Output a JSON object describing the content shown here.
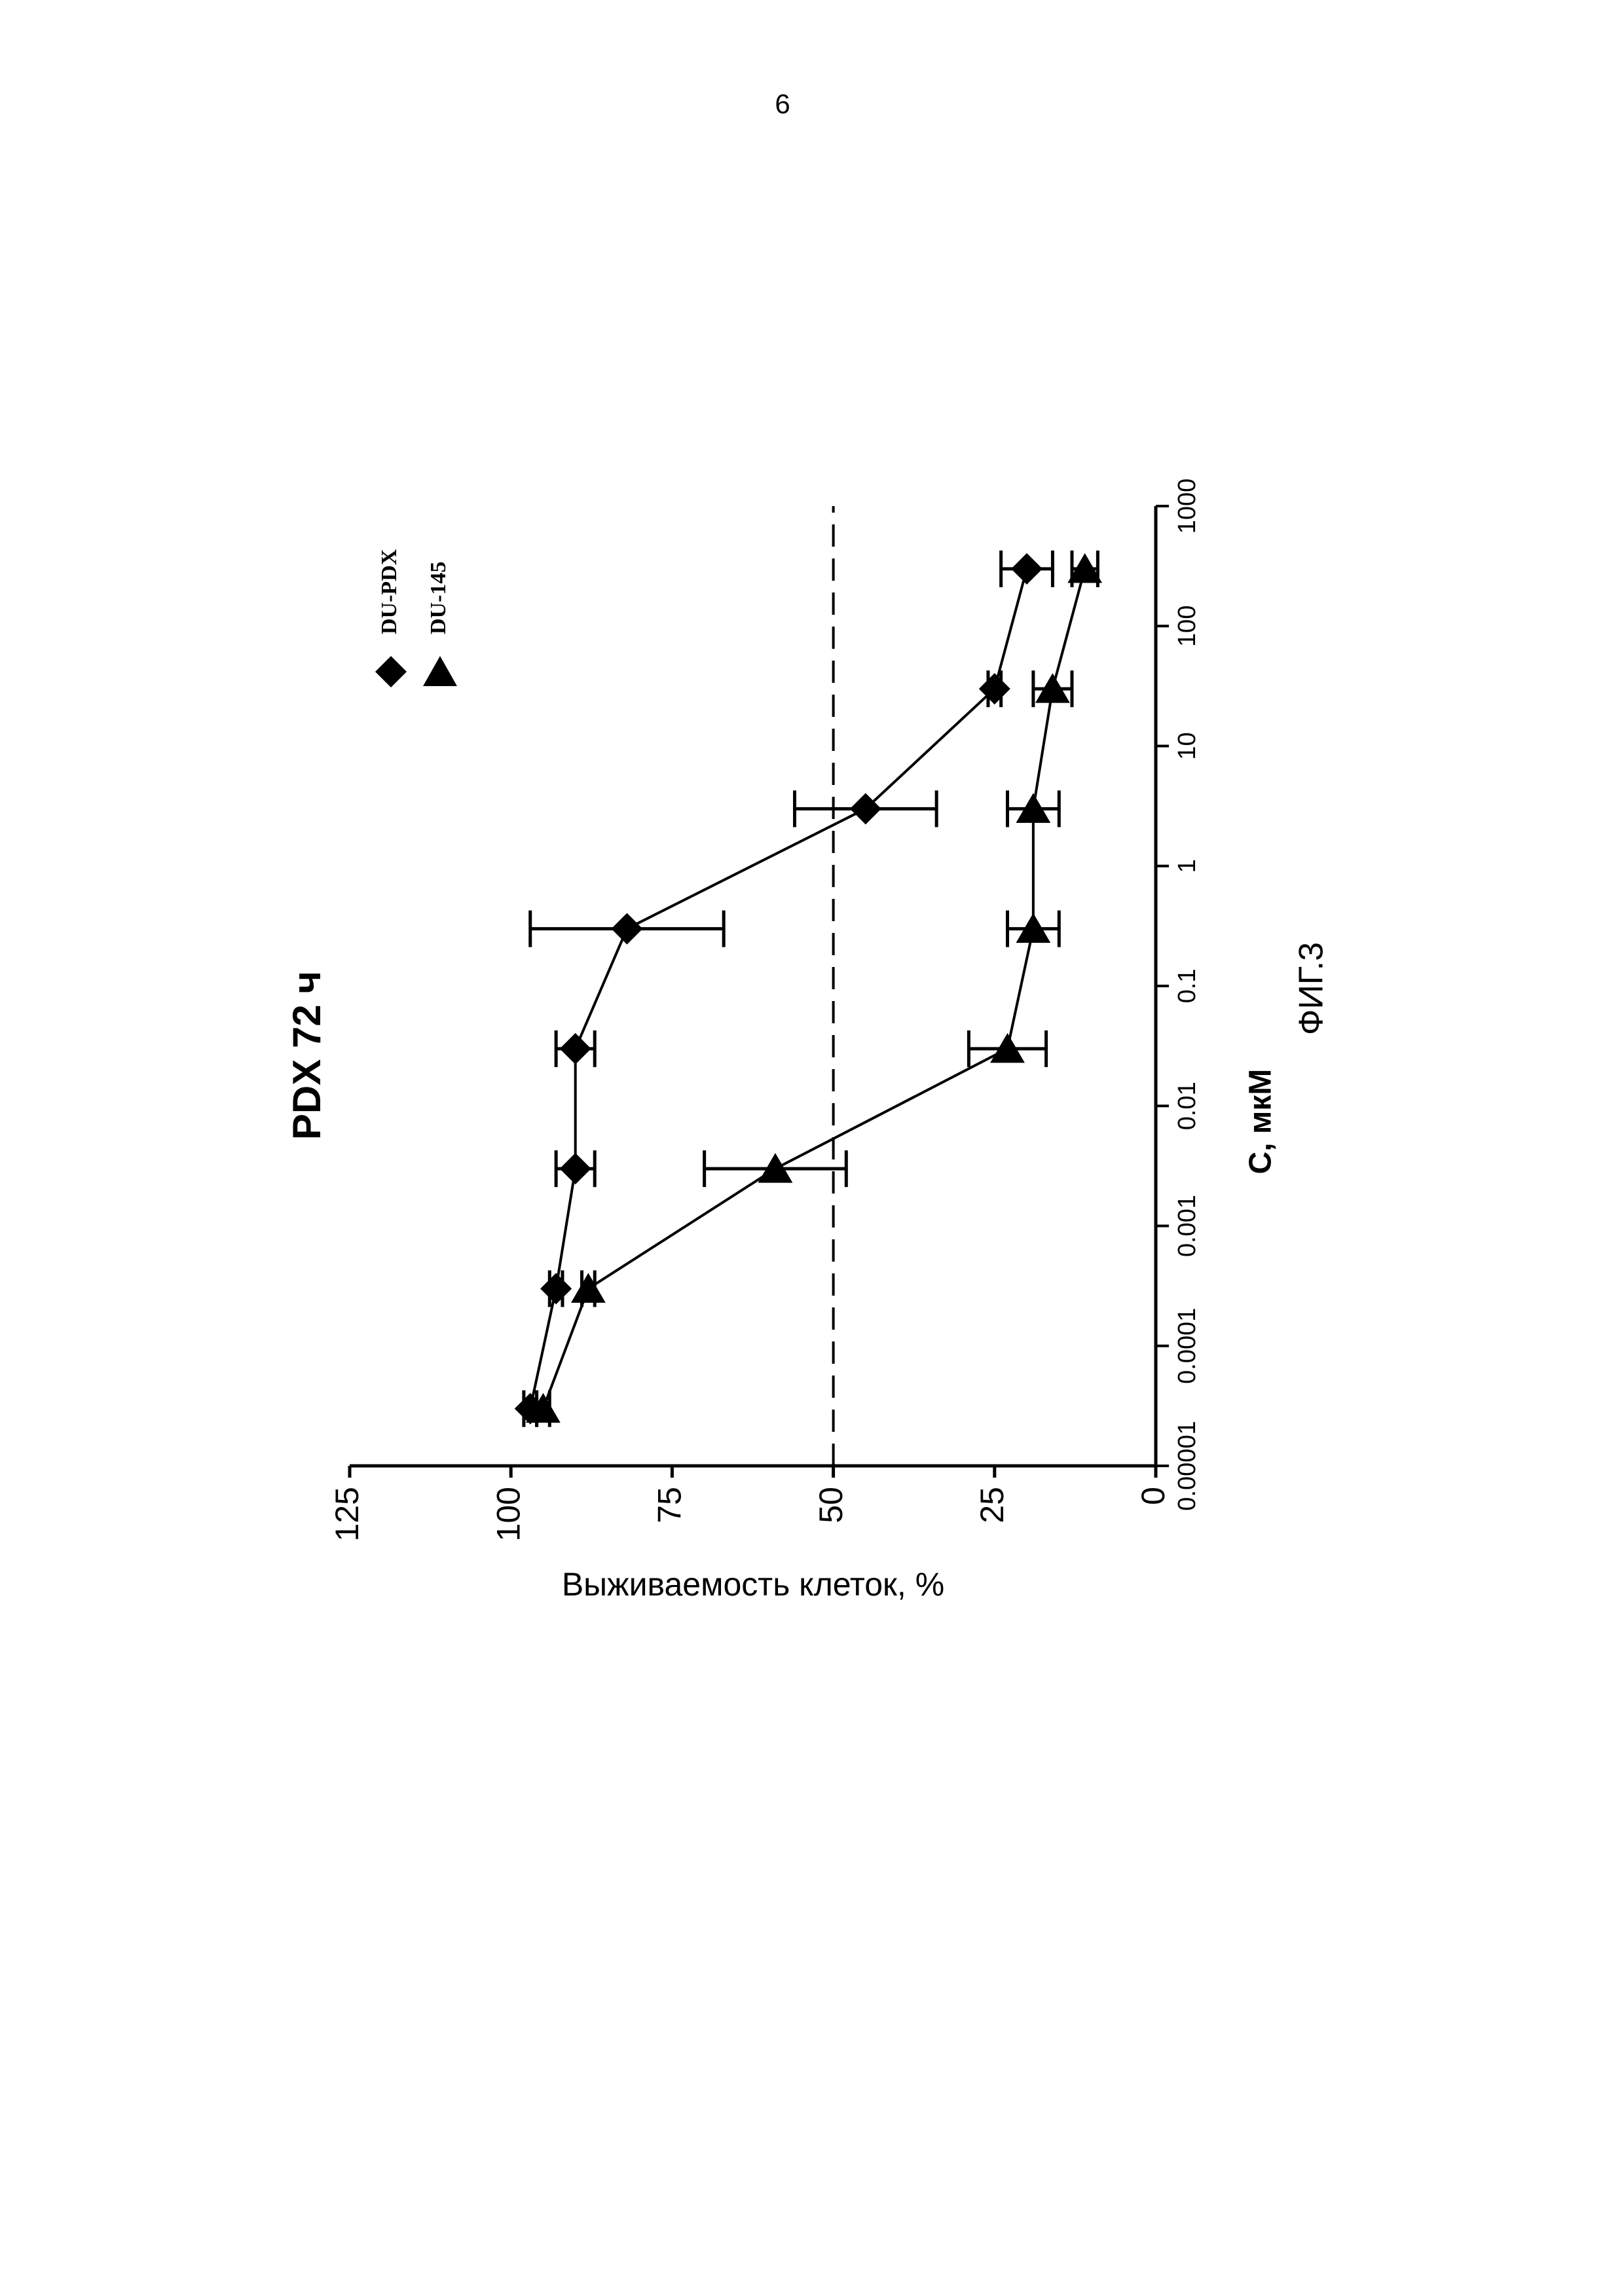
{
  "page_number": "6",
  "chart_data": {
    "type": "line",
    "title": "PDX  72 ч",
    "x_label": "С, мкМ",
    "y_label": "Выживаемость клеток, %",
    "caption": "ФИГ.3",
    "x": [
      3e-05,
      0.0003,
      0.003,
      0.03,
      0.3,
      3,
      30,
      300
    ],
    "series": [
      {
        "name": "DU-PDX",
        "marker": "diamond",
        "color": "#000000",
        "values": [
          97,
          93,
          90,
          90,
          82,
          45,
          25,
          20
        ],
        "errors": [
          1,
          1,
          3,
          3,
          15,
          11,
          1,
          4
        ]
      },
      {
        "name": "DU-145",
        "marker": "triangle",
        "color": "#000000",
        "values": [
          95,
          88,
          59,
          23,
          19,
          19,
          16,
          11
        ],
        "errors": [
          1,
          1,
          11,
          6,
          4,
          4,
          3,
          2
        ]
      }
    ],
    "xlog": true,
    "xlim": [
      1e-05,
      1000
    ],
    "xticks": [
      1e-05,
      0.0001,
      0.001,
      0.01,
      0.1,
      1,
      10,
      100,
      1000
    ],
    "ylim": [
      0,
      125
    ],
    "yticks": [
      0,
      25,
      50,
      75,
      100,
      125
    ],
    "reference_line": 50
  }
}
